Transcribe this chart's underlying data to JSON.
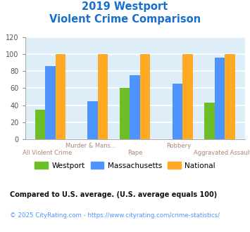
{
  "title_line1": "2019 Westport",
  "title_line2": "Violent Crime Comparison",
  "title_color": "#1a6ecc",
  "categories": [
    "All Violent Crime",
    "Murder & Mans...",
    "Rape",
    "Robbery",
    "Aggravated Assault"
  ],
  "categories_row1": [
    "",
    "Murder & Mans...",
    "",
    "Robbery",
    ""
  ],
  "categories_row2": [
    "All Violent Crime",
    "",
    "Rape",
    "",
    "Aggravated Assault"
  ],
  "westport": [
    35,
    0,
    60,
    0,
    43
  ],
  "massachusetts": [
    86,
    45,
    75,
    65,
    96
  ],
  "national": [
    100,
    100,
    100,
    100,
    100
  ],
  "westport_color": "#6dbf27",
  "massachusetts_color": "#4d94ff",
  "national_color": "#ffaa22",
  "ylim": [
    0,
    120
  ],
  "yticks": [
    0,
    20,
    40,
    60,
    80,
    100,
    120
  ],
  "plot_bg_color": "#ddeef8",
  "grid_color": "#ffffff",
  "xlabel_color": "#aa8877",
  "footnote1": "Compared to U.S. average. (U.S. average equals 100)",
  "footnote2": "© 2025 CityRating.com - https://www.cityrating.com/crime-statistics/",
  "footnote1_color": "#111111",
  "footnote2_color": "#4d94ff",
  "legend_labels": [
    "Westport",
    "Massachusetts",
    "National"
  ]
}
